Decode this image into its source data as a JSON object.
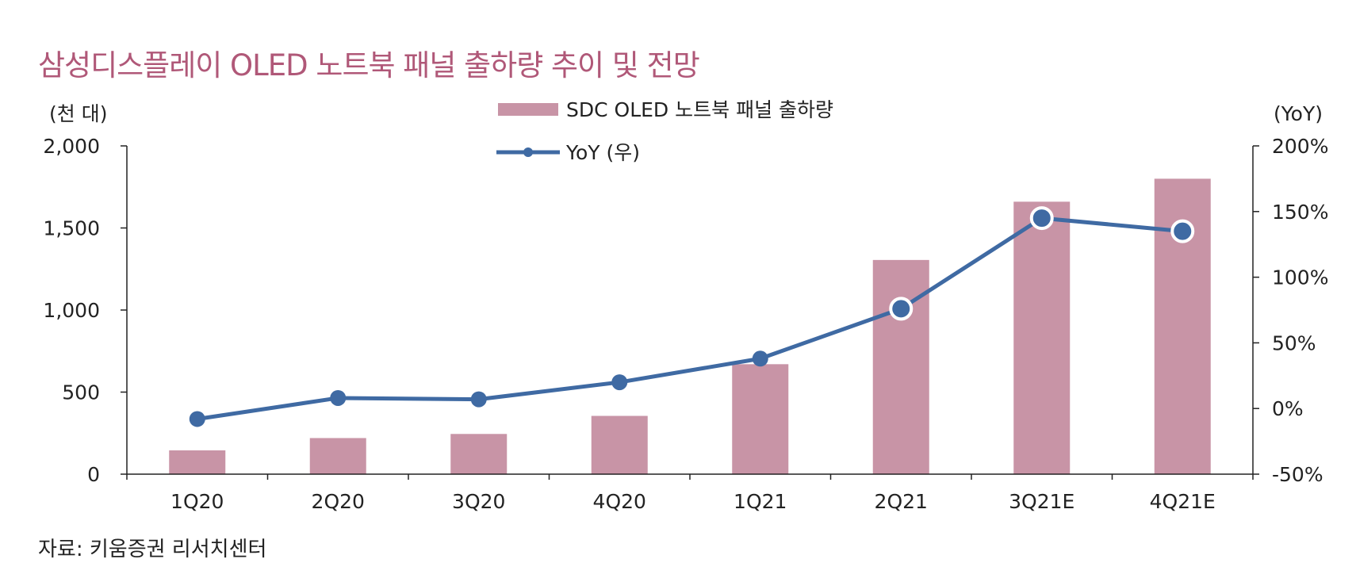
{
  "title": "삼성디스플레이 OLED 노트북 패널 출하량 추이 및 전망",
  "source": "자료: 키움증권 리서치센터",
  "colors": {
    "bar": "#c894a6",
    "line": "#3f6aa3",
    "title": "#b05878"
  },
  "chart_data": {
    "type": "bar+line",
    "categories": [
      "1Q20",
      "2Q20",
      "3Q20",
      "4Q20",
      "1Q21",
      "2Q21",
      "3Q21E",
      "4Q21E"
    ],
    "series": [
      {
        "name": "SDC OLED 노트북 패널 출하량",
        "type": "bar",
        "axis": "left",
        "values": [
          145,
          220,
          245,
          355,
          670,
          1305,
          1660,
          1800
        ]
      },
      {
        "name": "YoY (우)",
        "type": "line",
        "axis": "right",
        "values": [
          -8,
          8,
          7,
          20,
          38,
          76,
          145,
          135
        ]
      }
    ],
    "y_left": {
      "label": "(천 대)",
      "min": 0,
      "max": 2000,
      "ticks": [
        0,
        500,
        1000,
        1500,
        2000
      ],
      "tick_labels": [
        "0",
        "500",
        "1,000",
        "1,500",
        "2,000"
      ]
    },
    "y_right": {
      "label": "(YoY)",
      "min": -50,
      "max": 200,
      "ticks": [
        -50,
        0,
        50,
        100,
        150,
        200
      ],
      "tick_labels": [
        "-50%",
        "0%",
        "50%",
        "100%",
        "150%",
        "200%"
      ]
    },
    "legend": [
      "SDC OLED 노트북 패널 출하량",
      "YoY (우)"
    ],
    "legend_position": "top-center"
  }
}
